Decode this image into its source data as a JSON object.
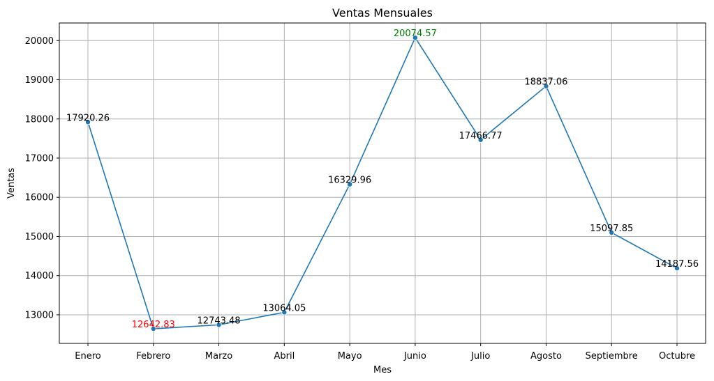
{
  "chart_data": {
    "type": "line",
    "title": "Ventas Mensuales",
    "xlabel": "Mes",
    "ylabel": "Ventas",
    "categories": [
      "Enero",
      "Febrero",
      "Marzo",
      "Abril",
      "Mayo",
      "Junio",
      "Julio",
      "Agosto",
      "Septiembre",
      "Octubre"
    ],
    "values": [
      17920.26,
      12642.83,
      12743.48,
      13064.05,
      16329.96,
      20074.57,
      17466.77,
      18837.06,
      15097.85,
      14187.56
    ],
    "data_labels": [
      "17920.26",
      "12642.83",
      "12743.48",
      "13064.05",
      "16329.96",
      "20074.57",
      "17466.77",
      "18837.06",
      "15097.85",
      "14187.56"
    ],
    "yticks": [
      13000,
      14000,
      15000,
      16000,
      17000,
      18000,
      19000,
      20000
    ],
    "ytick_labels": [
      "13000",
      "14000",
      "15000",
      "16000",
      "17000",
      "18000",
      "19000",
      "20000"
    ],
    "ylim": [
      12270,
      20450
    ],
    "grid": true,
    "colors": {
      "line": "#1f77b4",
      "marker": "#1f77b4",
      "min_label": "#ff0000",
      "max_label": "#008000",
      "default_label": "#000000",
      "grid": "#b0b0b0"
    },
    "min_index": 1,
    "max_index": 5
  }
}
